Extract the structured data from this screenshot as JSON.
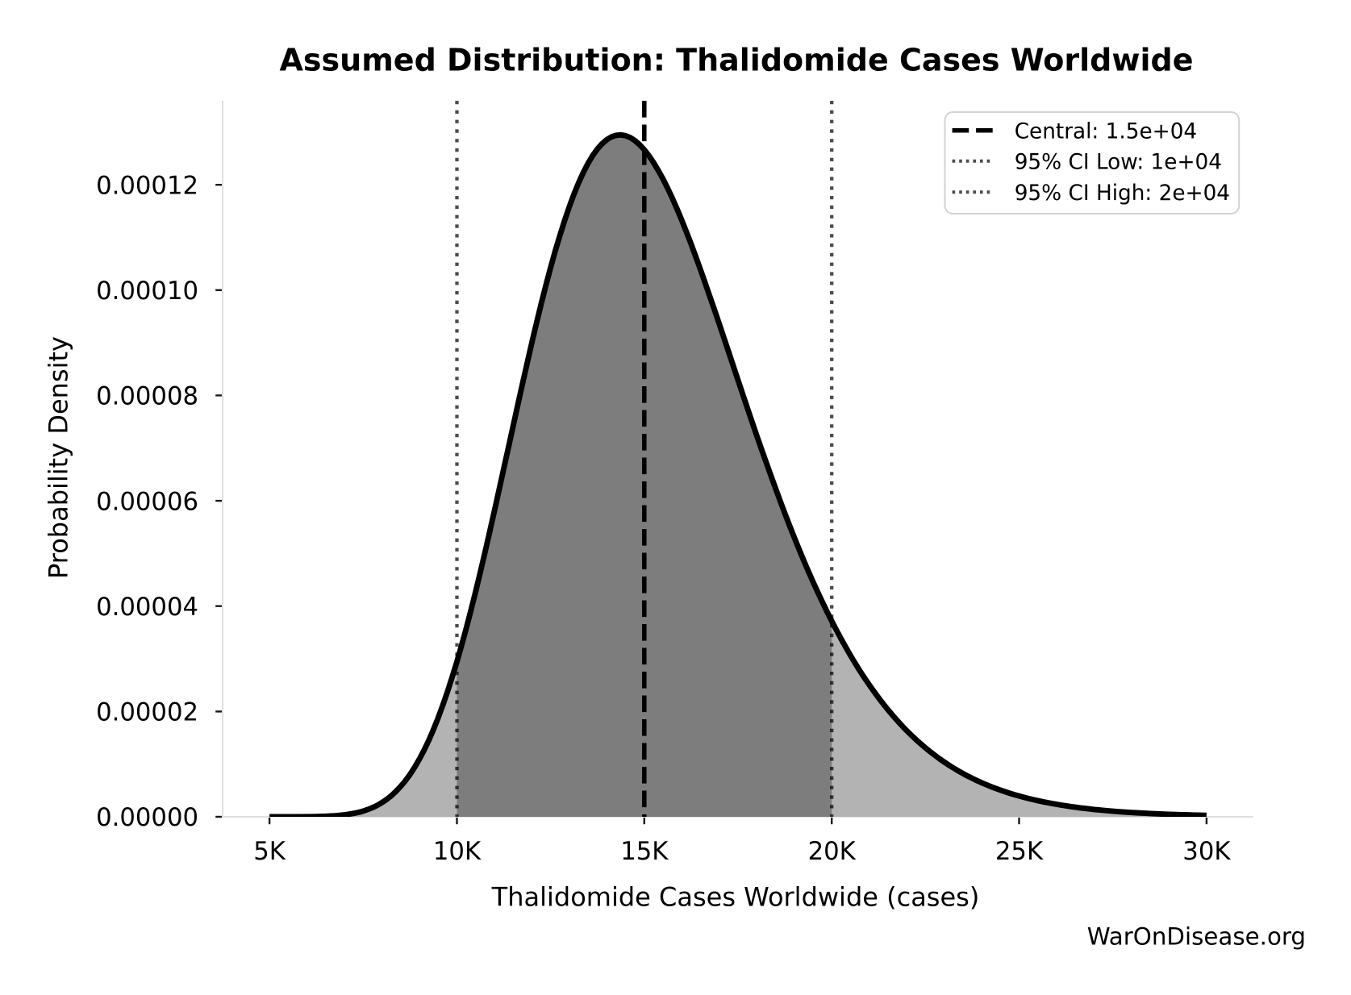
{
  "chart_data": {
    "type": "area",
    "title": "Assumed Distribution: Thalidomide Cases Worldwide",
    "xlabel": "Thalidomide Cases Worldwide (cases)",
    "ylabel": "Probability Density",
    "watermark": "WarOnDisease.org",
    "grid": false,
    "xlim": [
      3750,
      31250
    ],
    "ylim": [
      0,
      0.000135946
    ],
    "x_ticks": [
      {
        "value": 5000,
        "label": "5K"
      },
      {
        "value": 10000,
        "label": "10K"
      },
      {
        "value": 15000,
        "label": "15K"
      },
      {
        "value": 20000,
        "label": "20K"
      },
      {
        "value": 25000,
        "label": "25K"
      },
      {
        "value": 30000,
        "label": "30K"
      }
    ],
    "y_ticks": [
      {
        "value": 0.0,
        "label": "0.00000"
      },
      {
        "value": 2e-05,
        "label": "0.00002"
      },
      {
        "value": 4e-05,
        "label": "0.00004"
      },
      {
        "value": 6e-05,
        "label": "0.00006"
      },
      {
        "value": 8e-05,
        "label": "0.00008"
      },
      {
        "value": 0.0001,
        "label": "0.00010"
      },
      {
        "value": 0.00012,
        "label": "0.00012"
      }
    ],
    "distribution": {
      "family": "lognormal",
      "central": 15000,
      "ci95_low": 10000,
      "ci95_high": 20000,
      "mu_log": 9.615805,
      "sigma_log": 0.21
    },
    "ci_region": {
      "low": 10000,
      "high": 20000
    },
    "series": [
      {
        "name": "probability-density",
        "x": [
          5000,
          5125,
          5250,
          5375,
          5500,
          5625,
          5750,
          5875,
          6000,
          6125,
          6250,
          6375,
          6500,
          6625,
          6750,
          6875,
          7000,
          7125,
          7250,
          7375,
          7500,
          7625,
          7750,
          7875,
          8000,
          8125,
          8250,
          8375,
          8500,
          8625,
          8750,
          8875,
          9000,
          9125,
          9250,
          9375,
          9500,
          9625,
          9750,
          9875,
          10000,
          10125,
          10250,
          10375,
          10500,
          10625,
          10750,
          10875,
          11000,
          11125,
          11250,
          11375,
          11500,
          11625,
          11750,
          11875,
          12000,
          12125,
          12250,
          12375,
          12500,
          12625,
          12750,
          12875,
          13000,
          13125,
          13250,
          13375,
          13500,
          13625,
          13750,
          13875,
          14000,
          14125,
          14250,
          14375,
          14500,
          14625,
          14750,
          14875,
          15000,
          15125,
          15250,
          15375,
          15500,
          15625,
          15750,
          15875,
          16000,
          16125,
          16250,
          16375,
          16500,
          16625,
          16750,
          16875,
          17000,
          17125,
          17250,
          17375,
          17500,
          17625,
          17750,
          17875,
          18000,
          18125,
          18250,
          18375,
          18500,
          18625,
          18750,
          18875,
          19000,
          19125,
          19250,
          19375,
          19500,
          19625,
          19750,
          19875,
          20000,
          20125,
          20250,
          20375,
          20500,
          20625,
          20750,
          20875,
          21000,
          21125,
          21250,
          21375,
          21500,
          21625,
          21750,
          21875,
          22000,
          22125,
          22250,
          22375,
          22500,
          22625,
          22750,
          22875,
          23000,
          23125,
          23250,
          23375,
          23500,
          23625,
          23750,
          23875,
          24000,
          24125,
          24250,
          24375,
          24500,
          24625,
          24750,
          24875,
          25000,
          25125,
          25250,
          25375,
          25500,
          25625,
          25750,
          25875,
          26000,
          26125,
          26250,
          26375,
          26500,
          26625,
          26750,
          26875,
          27000,
          27125,
          27250,
          27375,
          27500,
          27625,
          27750,
          27875,
          28000,
          28125,
          28250,
          28375,
          28500,
          28625,
          28750,
          28875,
          29000,
          29125,
          29250,
          29375,
          29500,
          29625,
          29750,
          29875,
          30000
        ],
        "y": [
          4.3325e-10,
          7.7653e-10,
          1.3542e-09,
          2.3015e-09,
          3.8175e-09,
          6.1884e-09,
          9.8164e-09,
          1.5255e-08,
          2.325e-08,
          3.4789e-08,
          5.1151e-08,
          7.3969e-08,
          1.0529e-07,
          1.4764e-07,
          2.0407e-07,
          2.7826e-07,
          3.7451e-07,
          4.9783e-07,
          6.5394e-07,
          8.4932e-07,
          1.0912e-06,
          1.3874e-06,
          1.7466e-06,
          2.1778e-06,
          2.6909e-06,
          3.2958e-06,
          4.0028e-06,
          4.8223e-06,
          5.7646e-06,
          6.8397e-06,
          8.0572e-06,
          9.4259e-06,
          1.0954e-05,
          1.2648e-05,
          1.4515e-05,
          1.6558e-05,
          1.878e-05,
          2.1182e-05,
          2.3764e-05,
          2.6524e-05,
          2.9456e-05,
          3.2556e-05,
          3.5814e-05,
          3.9221e-05,
          4.2765e-05,
          4.6433e-05,
          5.021e-05,
          5.4081e-05,
          5.8027e-05,
          6.2031e-05,
          6.6073e-05,
          7.0134e-05,
          7.4194e-05,
          7.8232e-05,
          8.2229e-05,
          8.6164e-05,
          9.0018e-05,
          9.3772e-05,
          9.7408e-05,
          0.00010091,
          0.00010426,
          0.00010744,
          0.00011044,
          0.00011325,
          0.00011586,
          0.00011825,
          0.00012042,
          0.00012237,
          0.00012408,
          0.00012556,
          0.0001268,
          0.0001278,
          0.00012857,
          0.0001291,
          0.0001294,
          0.00012947,
          0.00012932,
          0.00012896,
          0.00012838,
          0.00012761,
          0.00012665,
          0.0001255,
          0.00012419,
          0.00012271,
          0.00012108,
          0.00011931,
          0.00011741,
          0.00011539,
          0.00011326,
          0.00011103,
          0.00010872,
          0.00010632,
          0.00010387,
          0.00010135,
          9.8791e-05,
          9.6192e-05,
          9.3563e-05,
          9.0913e-05,
          8.8251e-05,
          8.5583e-05,
          8.2918e-05,
          8.026e-05,
          7.7618e-05,
          7.4996e-05,
          7.24e-05,
          6.9835e-05,
          6.7305e-05,
          6.4814e-05,
          6.2366e-05,
          5.9964e-05,
          5.7612e-05,
          5.531e-05,
          5.3062e-05,
          5.087e-05,
          4.8735e-05,
          4.6657e-05,
          4.4639e-05,
          4.268e-05,
          4.0782e-05,
          3.8944e-05,
          3.7166e-05,
          3.5449e-05,
          3.3791e-05,
          3.2192e-05,
          3.0652e-05,
          2.917e-05,
          2.7745e-05,
          2.6376e-05,
          2.5062e-05,
          2.3801e-05,
          2.2593e-05,
          2.1435e-05,
          2.0328e-05,
          1.9269e-05,
          1.8257e-05,
          1.7291e-05,
          1.6368e-05,
          1.5489e-05,
          1.465e-05,
          1.3852e-05,
          1.3092e-05,
          1.2369e-05,
          1.1681e-05,
          1.1027e-05,
          1.0407e-05,
          9.8174e-06,
          9.2583e-06,
          8.7281e-06,
          8.2256e-06,
          7.7494e-06,
          7.2985e-06,
          6.8716e-06,
          6.4678e-06,
          6.0859e-06,
          5.7248e-06,
          5.3837e-06,
          5.0614e-06,
          4.7571e-06,
          4.4699e-06,
          4.199e-06,
          3.9434e-06,
          3.7025e-06,
          3.4754e-06,
          3.2615e-06,
          3.06e-06,
          2.8703e-06,
          2.6918e-06,
          2.5238e-06,
          2.3657e-06,
          2.2171e-06,
          2.0774e-06,
          1.9461e-06,
          1.8227e-06,
          1.7069e-06,
          1.598e-06,
          1.4959e-06,
          1.4e-06,
          1.31e-06,
          1.2256e-06,
          1.1465e-06,
          1.0722e-06,
          1.0026e-06,
          9.3742e-07,
          8.763e-07,
          8.1904e-07,
          7.6541e-07,
          7.1519e-07,
          6.6816e-07,
          6.2414e-07,
          5.8294e-07,
          5.4439e-07,
          5.0832e-07,
          4.7458e-07,
          4.4302e-07,
          4.1352e-07,
          3.8593e-07,
          3.6014e-07,
          3.3603e-07,
          3.135e-07,
          2.9246e-07,
          2.7279e-07
        ]
      }
    ],
    "vlines": [
      {
        "id": "central",
        "x": 15000,
        "style": "dashed",
        "label": "Central: 1.5e+04"
      },
      {
        "id": "ci-low",
        "x": 10000,
        "style": "dotted",
        "label": "95% CI Low: 1e+04"
      },
      {
        "id": "ci-high",
        "x": 20000,
        "style": "dotted",
        "label": "95% CI High: 2e+04"
      }
    ],
    "legend": {
      "position": "upper right",
      "items": [
        {
          "style": "dashed",
          "label": "Central: 1.5e+04"
        },
        {
          "style": "dotted",
          "label": "95% CI Low: 1e+04"
        },
        {
          "style": "dotted",
          "label": "95% CI High: 2e+04"
        }
      ]
    },
    "colors": {
      "background": "#ffffff",
      "fill_light": "#b3b3b3",
      "fill_dark": "#7d7d7d",
      "curve": "#000000",
      "central_line": "#000000",
      "ci_line": "rgba(0,0,0,0.7)",
      "spine": "#e0e0e0",
      "tick": "#1a1a1a",
      "text": "#000000",
      "watermark": "#333333",
      "legend_border": "#d2d2d2",
      "legend_bg": "#ffffff"
    }
  }
}
